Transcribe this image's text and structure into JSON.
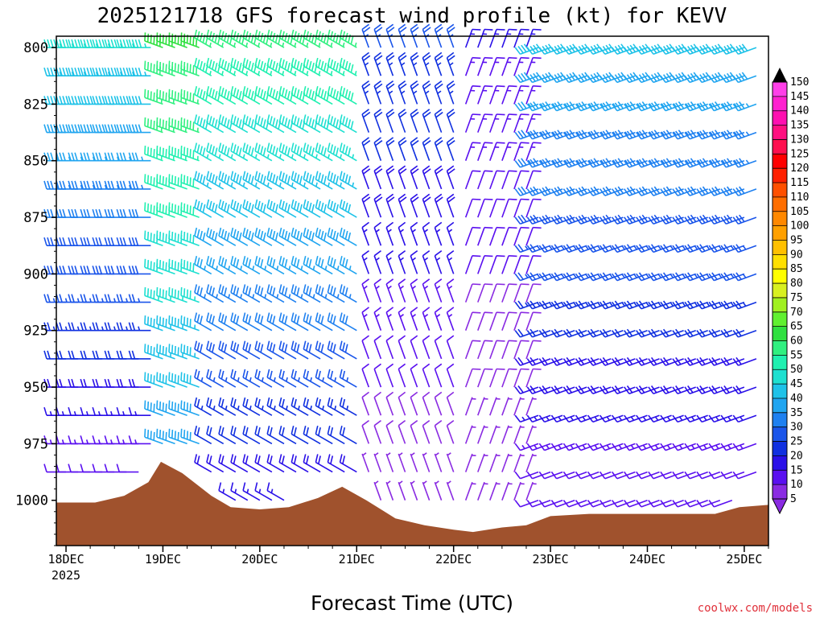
{
  "chart_data": {
    "type": "wind-barb profile",
    "title": "2025121718 GFS forecast wind profile (kt) for KEVV",
    "xlabel": "Forecast Time (UTC)",
    "ylabel": "",
    "credit": "coolwx.com/models",
    "y_axis": {
      "ticks": [
        800,
        825,
        850,
        875,
        900,
        925,
        950,
        975,
        1000
      ],
      "range_hpa": [
        795,
        1020
      ],
      "inverted": true
    },
    "x_axis": {
      "ticks": [
        {
          "label": "18DEC",
          "sublabel": "2025",
          "day": 0
        },
        {
          "label": "19DEC",
          "day": 1
        },
        {
          "label": "20DEC",
          "day": 2
        },
        {
          "label": "21DEC",
          "day": 3
        },
        {
          "label": "22DEC",
          "day": 4
        },
        {
          "label": "23DEC",
          "day": 5
        },
        {
          "label": "24DEC",
          "day": 6
        },
        {
          "label": "25DEC",
          "day": 7
        }
      ],
      "range_days": [
        -0.1,
        7.25
      ]
    },
    "colorbar": {
      "unit": "kt",
      "levels": [
        5,
        10,
        15,
        20,
        25,
        30,
        35,
        40,
        45,
        50,
        55,
        60,
        65,
        70,
        75,
        80,
        85,
        90,
        95,
        100,
        105,
        110,
        115,
        120,
        125,
        130,
        135,
        140,
        145,
        150
      ],
      "colors": [
        "#8a2be2",
        "#5a10f0",
        "#2a10e8",
        "#1030e0",
        "#1a55ea",
        "#1e80f0",
        "#20a5f0",
        "#1ec2e8",
        "#1ee0d0",
        "#20f0b0",
        "#30f080",
        "#30e040",
        "#60f030",
        "#a0f020",
        "#d8f020",
        "#ffff00",
        "#ffe000",
        "#ffc000",
        "#ffa000",
        "#ff8800",
        "#ff6e00",
        "#ff5000",
        "#ff2000",
        "#ff0000",
        "#ff1050",
        "#ff1080",
        "#ff10b0",
        "#ff20d0",
        "#ff40e8"
      ]
    },
    "terrain_surface_pressure": [
      {
        "day": -0.1,
        "hpa": 1001
      },
      {
        "day": 0.3,
        "hpa": 1001
      },
      {
        "day": 0.6,
        "hpa": 998
      },
      {
        "day": 0.85,
        "hpa": 992
      },
      {
        "day": 0.98,
        "hpa": 983
      },
      {
        "day": 1.2,
        "hpa": 988
      },
      {
        "day": 1.5,
        "hpa": 998
      },
      {
        "day": 1.7,
        "hpa": 1003
      },
      {
        "day": 2.0,
        "hpa": 1004
      },
      {
        "day": 2.3,
        "hpa": 1003
      },
      {
        "day": 2.6,
        "hpa": 999
      },
      {
        "day": 2.85,
        "hpa": 994
      },
      {
        "day": 3.1,
        "hpa": 1000
      },
      {
        "day": 3.4,
        "hpa": 1008
      },
      {
        "day": 3.7,
        "hpa": 1011
      },
      {
        "day": 4.0,
        "hpa": 1013
      },
      {
        "day": 4.2,
        "hpa": 1014
      },
      {
        "day": 4.5,
        "hpa": 1012
      },
      {
        "day": 4.75,
        "hpa": 1011
      },
      {
        "day": 5.0,
        "hpa": 1007
      },
      {
        "day": 5.4,
        "hpa": 1006
      },
      {
        "day": 5.8,
        "hpa": 1006
      },
      {
        "day": 6.3,
        "hpa": 1006
      },
      {
        "day": 6.7,
        "hpa": 1006
      },
      {
        "day": 6.95,
        "hpa": 1003
      },
      {
        "day": 7.25,
        "hpa": 1002
      }
    ],
    "wind_barbs": [
      {
        "day_range": [
          -0.1,
          0.9
        ],
        "hpa_range": [
          800,
          1000
        ],
        "speed_kt": [
          10,
          45
        ],
        "direction_deg": 270,
        "note": "westerly, strengthening with height"
      },
      {
        "day_range": [
          0.9,
          1.4
        ],
        "hpa_range": [
          800,
          980
        ],
        "speed_kt": [
          35,
          60
        ],
        "direction_deg": 290
      },
      {
        "day_range": [
          1.4,
          3.1
        ],
        "hpa_range": [
          800,
          1000
        ],
        "speed_kt": [
          15,
          55
        ],
        "direction_deg": 300
      },
      {
        "day_range": [
          3.1,
          4.1
        ],
        "hpa_range": [
          800,
          1010
        ],
        "speed_kt": [
          5,
          25
        ],
        "direction_deg": 340,
        "note": "northerly, weak"
      },
      {
        "day_range": [
          4.1,
          4.8
        ],
        "hpa_range": [
          800,
          1010
        ],
        "speed_kt": [
          5,
          15
        ],
        "direction_deg": 20
      },
      {
        "day_range": [
          4.8,
          7.25
        ],
        "hpa_range": [
          800,
          1005
        ],
        "speed_kt": [
          10,
          40
        ],
        "direction_deg": 250,
        "note": "south-westerly, stronger aloft"
      }
    ]
  }
}
